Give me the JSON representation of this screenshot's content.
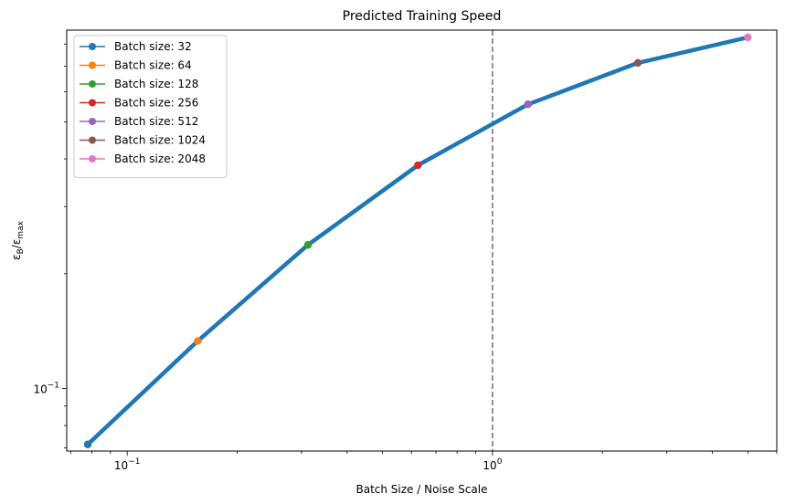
{
  "chart_data": {
    "type": "line",
    "title": "Predicted Training Speed",
    "xlabel": "Batch Size / Noise Scale",
    "ylabel_main": "ε",
    "ylabel_main_sub": "B",
    "ylabel_sep": "/ε",
    "ylabel_sep_sub": "max",
    "x_scale": "log",
    "y_scale": "log",
    "xlim": [
      0.0683,
      6.0
    ],
    "ylim": [
      0.0686,
      0.87
    ],
    "grid": false,
    "legend_position": "upper-left",
    "x_tick_labels": [
      {
        "base": "10",
        "exp": "−1",
        "value": 0.1
      },
      {
        "base": "10",
        "exp": "0",
        "value": 1
      }
    ],
    "y_tick_labels": [
      {
        "base": "10",
        "exp": "−1",
        "value": 0.1
      }
    ],
    "main_line": {
      "color": "#1f77b4",
      "x": [
        0.078,
        0.156,
        0.3125,
        0.625,
        1.25,
        2.5,
        5.0
      ],
      "y": [
        0.0714,
        0.1333,
        0.238,
        0.385,
        0.556,
        0.714,
        0.833
      ]
    },
    "reference_line": {
      "x": 1.0,
      "style": "dashed",
      "color": "#777777"
    },
    "series": [
      {
        "name": "Batch size: 32",
        "x": 0.078,
        "y": 0.0714,
        "color": "#1f77b4"
      },
      {
        "name": "Batch size: 64",
        "x": 0.156,
        "y": 0.1333,
        "color": "#ff7f0e"
      },
      {
        "name": "Batch size: 128",
        "x": 0.3125,
        "y": 0.238,
        "color": "#2ca02c"
      },
      {
        "name": "Batch size: 256",
        "x": 0.625,
        "y": 0.385,
        "color": "#d62728"
      },
      {
        "name": "Batch size: 512",
        "x": 1.25,
        "y": 0.556,
        "color": "#9467bd"
      },
      {
        "name": "Batch size: 1024",
        "x": 2.5,
        "y": 0.714,
        "color": "#8c564b"
      },
      {
        "name": "Batch size: 2048",
        "x": 5.0,
        "y": 0.833,
        "color": "#e377c2"
      }
    ]
  }
}
